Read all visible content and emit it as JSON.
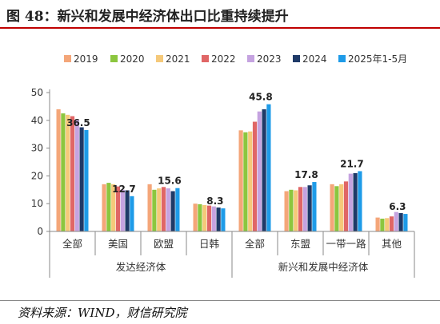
{
  "title": "图 48：新兴和发展中经济体出口比重持续提升",
  "source": "资料来源：WIND，财信研究院",
  "colors": {
    "series": [
      "#f4a679",
      "#8cc63f",
      "#f5c97a",
      "#e06666",
      "#c5a3e0",
      "#1f3a68",
      "#1e9be8"
    ],
    "rule": "#c00000"
  },
  "chart_data": {
    "type": "bar",
    "ylim": [
      0,
      50
    ],
    "yticks": [
      0,
      10,
      20,
      30,
      40,
      50
    ],
    "grid": false,
    "legend_position": "top",
    "categories": [
      "全部",
      "美国",
      "欧盟",
      "日韩",
      "全部",
      "东盟",
      "一带一路",
      "其他"
    ],
    "groups": [
      {
        "label": "发达经济体",
        "from": 0,
        "to": 3
      },
      {
        "label": "新兴和发展中经济体",
        "from": 4,
        "to": 7
      }
    ],
    "series": [
      {
        "name": "2019",
        "values": [
          44.0,
          17.0,
          17.0,
          10.0,
          36.4,
          14.5,
          17.0,
          5.0
        ]
      },
      {
        "name": "2020",
        "values": [
          42.5,
          17.5,
          15.0,
          9.8,
          35.7,
          15.0,
          16.3,
          4.6
        ]
      },
      {
        "name": "2021",
        "values": [
          42.0,
          17.0,
          15.5,
          9.5,
          36.0,
          14.8,
          17.0,
          4.8
        ]
      },
      {
        "name": "2022",
        "values": [
          41.5,
          16.2,
          16.0,
          9.3,
          39.5,
          16.0,
          18.0,
          5.4
        ]
      },
      {
        "name": "2023",
        "values": [
          40.0,
          15.0,
          15.5,
          9.0,
          43.2,
          16.0,
          20.8,
          7.0
        ]
      },
      {
        "name": "2024",
        "values": [
          37.5,
          14.8,
          14.5,
          8.6,
          44.0,
          16.6,
          21.0,
          6.6
        ]
      },
      {
        "name": "2025年1-5月",
        "values": [
          36.5,
          12.7,
          15.6,
          8.3,
          45.8,
          17.8,
          21.7,
          6.3
        ]
      }
    ],
    "data_labels": [
      {
        "category_index": 0,
        "series_index": 6,
        "text": "36.5"
      },
      {
        "category_index": 1,
        "series_index": 6,
        "text": "12.7"
      },
      {
        "category_index": 2,
        "series_index": 6,
        "text": "15.6"
      },
      {
        "category_index": 3,
        "series_index": 6,
        "text": "8.3"
      },
      {
        "category_index": 4,
        "series_index": 6,
        "text": "45.8"
      },
      {
        "category_index": 5,
        "series_index": 6,
        "text": "17.8"
      },
      {
        "category_index": 6,
        "series_index": 6,
        "text": "21.7"
      },
      {
        "category_index": 7,
        "series_index": 6,
        "text": "6.3"
      }
    ]
  }
}
